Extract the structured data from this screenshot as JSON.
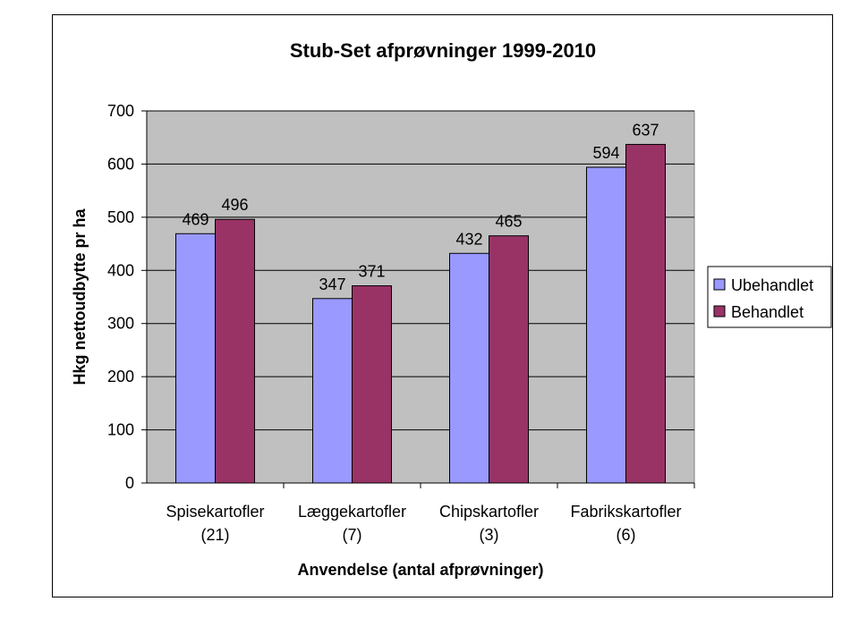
{
  "chart_data": {
    "type": "bar",
    "title": "Stub-Set afprøvninger 1999-2010",
    "xlabel": "Anvendelse (antal afprøvninger)",
    "ylabel": "Hkg nettoudbytte pr ha",
    "categories": [
      [
        "Spisekartofler",
        "(21)"
      ],
      [
        "Læggekartofler",
        "(7)"
      ],
      [
        "Chipskartofler",
        "(3)"
      ],
      [
        "Fabrikskartofler",
        "(6)"
      ]
    ],
    "series": [
      {
        "name": "Ubehandlet",
        "color": "#9999FF",
        "values": [
          469,
          347,
          432,
          594
        ]
      },
      {
        "name": "Behandlet",
        "color": "#993366",
        "values": [
          496,
          371,
          465,
          637
        ]
      }
    ],
    "ylim": [
      0,
      700
    ],
    "yticks": [
      "0",
      "100",
      "200",
      "300",
      "400",
      "500",
      "600",
      "700"
    ],
    "grid": true,
    "plot_background": "#C0C0C0",
    "legend_position": "right"
  }
}
